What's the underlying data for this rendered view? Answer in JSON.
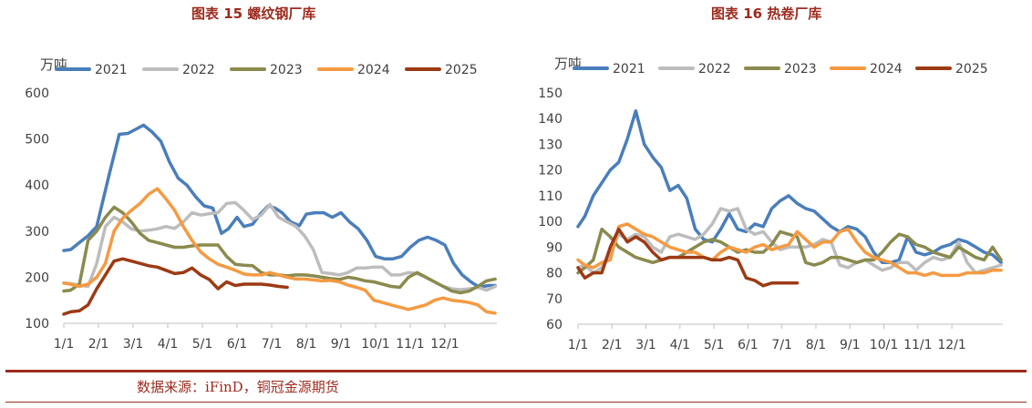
{
  "source_note": "数据来源：iFinD，铜冠金源期货",
  "colors": {
    "2021": "#4a7ebb",
    "2022": "#bdbdbd",
    "2023": "#8a8a4e",
    "2024": "#f59a42",
    "2025": "#9c3a14",
    "title": "#9c2b1e"
  },
  "chart_data": [
    {
      "type": "line",
      "title": "图表 15  螺纹钢厂库",
      "unit_label": "万吨",
      "ylim": [
        100,
        600
      ],
      "yticks": [
        100,
        200,
        300,
        400,
        500,
        600
      ],
      "xlim": [
        0,
        12.5
      ],
      "xticks": [
        0,
        1,
        2,
        3,
        4,
        5,
        6,
        7,
        8,
        9,
        10,
        11
      ],
      "xtick_labels": [
        "1/1",
        "2/1",
        "3/1",
        "4/1",
        "5/1",
        "6/1",
        "7/1",
        "8/1",
        "9/1",
        "10/1",
        "11/1",
        "12/1"
      ],
      "series": [
        {
          "name": "2021",
          "x": [
            0,
            0.2,
            0.45,
            0.7,
            0.95,
            1.3,
            1.6,
            1.85,
            2.05,
            2.3,
            2.55,
            2.8,
            3.05,
            3.3,
            3.55,
            3.8,
            4.05,
            4.3,
            4.55,
            4.75,
            5.0,
            5.2,
            5.45,
            5.65,
            5.9,
            6.1,
            6.3,
            6.55,
            6.8,
            7.0,
            7.25,
            7.5,
            7.75,
            8.0,
            8.25,
            8.5,
            8.75,
            9.0,
            9.25,
            9.5,
            9.75,
            10.0,
            10.25,
            10.5,
            10.75,
            11.0,
            11.25,
            11.5,
            11.75,
            12.0,
            12.25,
            12.45
          ],
          "values": [
            258,
            260,
            275,
            290,
            310,
            420,
            510,
            512,
            520,
            530,
            515,
            495,
            450,
            415,
            400,
            375,
            355,
            350,
            295,
            305,
            330,
            310,
            315,
            335,
            355,
            350,
            340,
            320,
            312,
            337,
            340,
            340,
            330,
            340,
            320,
            305,
            280,
            245,
            240,
            240,
            245,
            265,
            280,
            287,
            280,
            270,
            230,
            205,
            190,
            178,
            182,
            182
          ]
        },
        {
          "name": "2022",
          "x": [
            0,
            0.2,
            0.45,
            0.7,
            0.95,
            1.2,
            1.45,
            1.7,
            1.95,
            2.2,
            2.45,
            2.7,
            2.95,
            3.2,
            3.45,
            3.7,
            3.95,
            4.2,
            4.45,
            4.7,
            4.95,
            5.2,
            5.45,
            5.7,
            5.95,
            6.2,
            6.45,
            6.7,
            6.95,
            7.2,
            7.45,
            7.7,
            7.95,
            8.2,
            8.45,
            8.7,
            8.95,
            9.2,
            9.45,
            9.7,
            9.95,
            10.2,
            10.45,
            10.7,
            10.95,
            11.2,
            11.45,
            11.7,
            11.95,
            12.2,
            12.45
          ],
          "values": [
            188,
            186,
            183,
            180,
            230,
            310,
            330,
            320,
            305,
            300,
            302,
            305,
            310,
            306,
            320,
            340,
            335,
            338,
            340,
            360,
            362,
            345,
            325,
            335,
            358,
            330,
            320,
            310,
            290,
            260,
            210,
            208,
            205,
            210,
            220,
            220,
            222,
            222,
            205,
            205,
            210,
            208,
            200,
            190,
            180,
            175,
            173,
            175,
            178,
            172,
            180
          ]
        },
        {
          "name": "2023",
          "x": [
            0,
            0.2,
            0.45,
            0.7,
            0.95,
            1.2,
            1.45,
            1.7,
            1.95,
            2.2,
            2.45,
            2.7,
            2.95,
            3.2,
            3.45,
            3.7,
            3.95,
            4.2,
            4.45,
            4.7,
            4.95,
            5.2,
            5.45,
            5.7,
            5.95,
            6.2,
            6.45,
            6.7,
            6.95,
            7.2,
            7.45,
            7.7,
            7.95,
            8.2,
            8.45,
            8.7,
            8.95,
            9.2,
            9.45,
            9.7,
            9.95,
            10.2,
            10.45,
            10.7,
            10.95,
            11.2,
            11.45,
            11.7,
            11.95,
            12.2,
            12.45
          ],
          "values": [
            170,
            172,
            185,
            280,
            300,
            330,
            352,
            340,
            320,
            295,
            280,
            275,
            270,
            265,
            265,
            268,
            270,
            270,
            270,
            245,
            228,
            226,
            225,
            210,
            205,
            205,
            203,
            205,
            205,
            203,
            200,
            197,
            195,
            200,
            197,
            192,
            190,
            185,
            180,
            178,
            200,
            210,
            200,
            190,
            180,
            170,
            166,
            170,
            180,
            192,
            196
          ]
        },
        {
          "name": "2024",
          "x": [
            0,
            0.2,
            0.45,
            0.7,
            0.95,
            1.2,
            1.45,
            1.7,
            1.95,
            2.2,
            2.45,
            2.7,
            2.95,
            3.2,
            3.45,
            3.7,
            3.95,
            4.2,
            4.45,
            4.7,
            4.95,
            5.2,
            5.45,
            5.7,
            5.95,
            6.2,
            6.45,
            6.7,
            6.95,
            7.2,
            7.45,
            7.7,
            7.95,
            8.2,
            8.45,
            8.7,
            8.95,
            9.2,
            9.45,
            9.7,
            9.95,
            10.2,
            10.45,
            10.7,
            10.95,
            11.2,
            11.45,
            11.7,
            11.95,
            12.2,
            12.45
          ],
          "values": [
            187,
            185,
            180,
            185,
            200,
            230,
            300,
            328,
            345,
            360,
            380,
            392,
            370,
            345,
            310,
            280,
            255,
            240,
            228,
            222,
            215,
            207,
            205,
            205,
            210,
            205,
            200,
            196,
            196,
            194,
            192,
            193,
            190,
            183,
            178,
            172,
            150,
            145,
            140,
            135,
            130,
            135,
            140,
            150,
            155,
            150,
            148,
            145,
            140,
            125,
            122
          ]
        },
        {
          "name": "2025",
          "x": [
            0,
            0.2,
            0.45,
            0.7,
            0.95,
            1.2,
            1.45,
            1.7,
            1.95,
            2.2,
            2.45,
            2.7,
            2.95,
            3.2,
            3.45,
            3.7,
            3.95,
            4.2,
            4.45,
            4.7,
            4.95,
            5.2,
            5.45,
            5.7,
            5.95,
            6.2,
            6.45
          ],
          "values": [
            120,
            125,
            127,
            140,
            175,
            205,
            235,
            240,
            235,
            230,
            225,
            222,
            215,
            208,
            210,
            220,
            205,
            195,
            175,
            190,
            182,
            185,
            185,
            185,
            183,
            180,
            178
          ]
        }
      ]
    },
    {
      "type": "line",
      "title": "图表 16  热卷厂库",
      "unit_label": "万吨",
      "ylim": [
        60,
        150
      ],
      "yticks": [
        60,
        70,
        80,
        90,
        100,
        110,
        120,
        130,
        140,
        150
      ],
      "xlim": [
        0,
        12.5
      ],
      "xticks": [
        0,
        1,
        2,
        3,
        4,
        5,
        6,
        7,
        8,
        9,
        10,
        11
      ],
      "xtick_labels": [
        "1/1",
        "2/1",
        "3/1",
        "4/1",
        "5/1",
        "6/1",
        "7/1",
        "8/1",
        "9/1",
        "10/1",
        "11/1",
        "12/1"
      ],
      "series": [
        {
          "name": "2021",
          "x": [
            0,
            0.2,
            0.45,
            0.7,
            0.95,
            1.2,
            1.45,
            1.7,
            1.95,
            2.2,
            2.45,
            2.7,
            2.95,
            3.2,
            3.45,
            3.7,
            3.95,
            4.2,
            4.45,
            4.7,
            4.95,
            5.2,
            5.45,
            5.7,
            5.95,
            6.2,
            6.45,
            6.7,
            6.95,
            7.2,
            7.45,
            7.7,
            7.95,
            8.2,
            8.45,
            8.7,
            8.95,
            9.2,
            9.45,
            9.7,
            9.95,
            10.2,
            10.45,
            10.7,
            10.95,
            11.2,
            11.45,
            11.7,
            11.95,
            12.2,
            12.45
          ],
          "values": [
            98,
            102,
            110,
            115,
            120,
            123,
            132,
            143,
            130,
            125,
            121,
            112,
            114,
            109,
            97,
            93,
            92,
            97,
            103,
            97,
            96,
            99,
            98,
            105,
            108,
            110,
            107,
            105,
            104,
            101,
            98,
            96,
            98,
            97,
            94,
            88,
            84,
            84,
            85,
            94,
            88,
            87,
            88,
            90,
            91,
            93,
            92,
            90,
            88,
            87,
            84
          ]
        },
        {
          "name": "2022",
          "x": [
            0,
            0.2,
            0.45,
            0.7,
            0.95,
            1.2,
            1.45,
            1.7,
            1.95,
            2.2,
            2.45,
            2.7,
            2.95,
            3.2,
            3.45,
            3.7,
            3.95,
            4.2,
            4.45,
            4.7,
            4.95,
            5.2,
            5.45,
            5.7,
            5.95,
            6.2,
            6.45,
            6.7,
            6.95,
            7.2,
            7.45,
            7.7,
            7.95,
            8.2,
            8.45,
            8.7,
            8.95,
            9.2,
            9.45,
            9.7,
            9.95,
            10.2,
            10.45,
            10.7,
            10.95,
            11.2,
            11.45,
            11.7,
            11.95,
            12.2,
            12.45
          ],
          "values": [
            82,
            83,
            80,
            82,
            88,
            95,
            93,
            95,
            94,
            90,
            88,
            94,
            95,
            94,
            93,
            95,
            99,
            105,
            104,
            105,
            97,
            95,
            96,
            92,
            89,
            90,
            90,
            90,
            91,
            93,
            92,
            83,
            82,
            84,
            85,
            83,
            81,
            82,
            84,
            84,
            81,
            84,
            86,
            85,
            86,
            92,
            84,
            80,
            81,
            82,
            83
          ]
        },
        {
          "name": "2023",
          "x": [
            0,
            0.2,
            0.45,
            0.7,
            0.95,
            1.2,
            1.45,
            1.7,
            1.95,
            2.2,
            2.45,
            2.7,
            2.95,
            3.2,
            3.45,
            3.7,
            3.95,
            4.2,
            4.45,
            4.7,
            4.95,
            5.2,
            5.45,
            5.7,
            5.95,
            6.2,
            6.45,
            6.7,
            6.95,
            7.2,
            7.45,
            7.7,
            7.95,
            8.2,
            8.45,
            8.7,
            8.95,
            9.2,
            9.45,
            9.7,
            9.95,
            10.2,
            10.45,
            10.7,
            10.95,
            11.2,
            11.45,
            11.7,
            11.95,
            12.2,
            12.45
          ],
          "values": [
            80,
            82,
            85,
            97,
            94,
            90,
            88,
            86,
            85,
            84,
            85,
            86,
            86,
            88,
            90,
            92,
            93,
            92,
            90,
            88,
            89,
            88,
            88,
            91,
            96,
            95,
            94,
            84,
            83,
            84,
            86,
            86,
            85,
            84,
            85,
            85,
            88,
            92,
            95,
            94,
            91,
            90,
            88,
            87,
            86,
            90,
            88,
            86,
            85,
            90,
            85
          ]
        },
        {
          "name": "2024",
          "x": [
            0,
            0.2,
            0.45,
            0.7,
            0.95,
            1.2,
            1.45,
            1.7,
            1.95,
            2.2,
            2.45,
            2.7,
            2.95,
            3.2,
            3.45,
            3.7,
            3.95,
            4.2,
            4.45,
            4.7,
            4.95,
            5.2,
            5.45,
            5.7,
            5.95,
            6.2,
            6.45,
            6.7,
            6.95,
            7.2,
            7.45,
            7.7,
            7.95,
            8.2,
            8.45,
            8.7,
            8.95,
            9.2,
            9.45,
            9.7,
            9.95,
            10.2,
            10.45,
            10.7,
            10.95,
            11.2,
            11.45,
            11.7,
            11.95,
            12.2,
            12.45
          ],
          "values": [
            85,
            83,
            82,
            84,
            85,
            98,
            99,
            97,
            95,
            94,
            92,
            90,
            89,
            88,
            88,
            86,
            85,
            88,
            90,
            89,
            88,
            90,
            91,
            89,
            90,
            91,
            96,
            93,
            90,
            92,
            92,
            96,
            97,
            92,
            88,
            86,
            85,
            84,
            82,
            80,
            80,
            79,
            80,
            79,
            79,
            79,
            80,
            80,
            80,
            81,
            81
          ]
        },
        {
          "name": "2025",
          "x": [
            0,
            0.2,
            0.45,
            0.7,
            0.95,
            1.2,
            1.45,
            1.7,
            1.95,
            2.2,
            2.45,
            2.7,
            2.95,
            3.2,
            3.45,
            3.7,
            3.95,
            4.2,
            4.45,
            4.7,
            4.95,
            5.2,
            5.45,
            5.7,
            5.95,
            6.2,
            6.45
          ],
          "values": [
            82,
            78,
            80,
            80,
            90,
            97,
            92,
            94,
            92,
            88,
            85,
            86,
            86,
            86,
            86,
            86,
            85,
            85,
            86,
            85,
            78,
            77,
            75,
            76,
            76,
            76,
            76
          ]
        }
      ]
    }
  ]
}
